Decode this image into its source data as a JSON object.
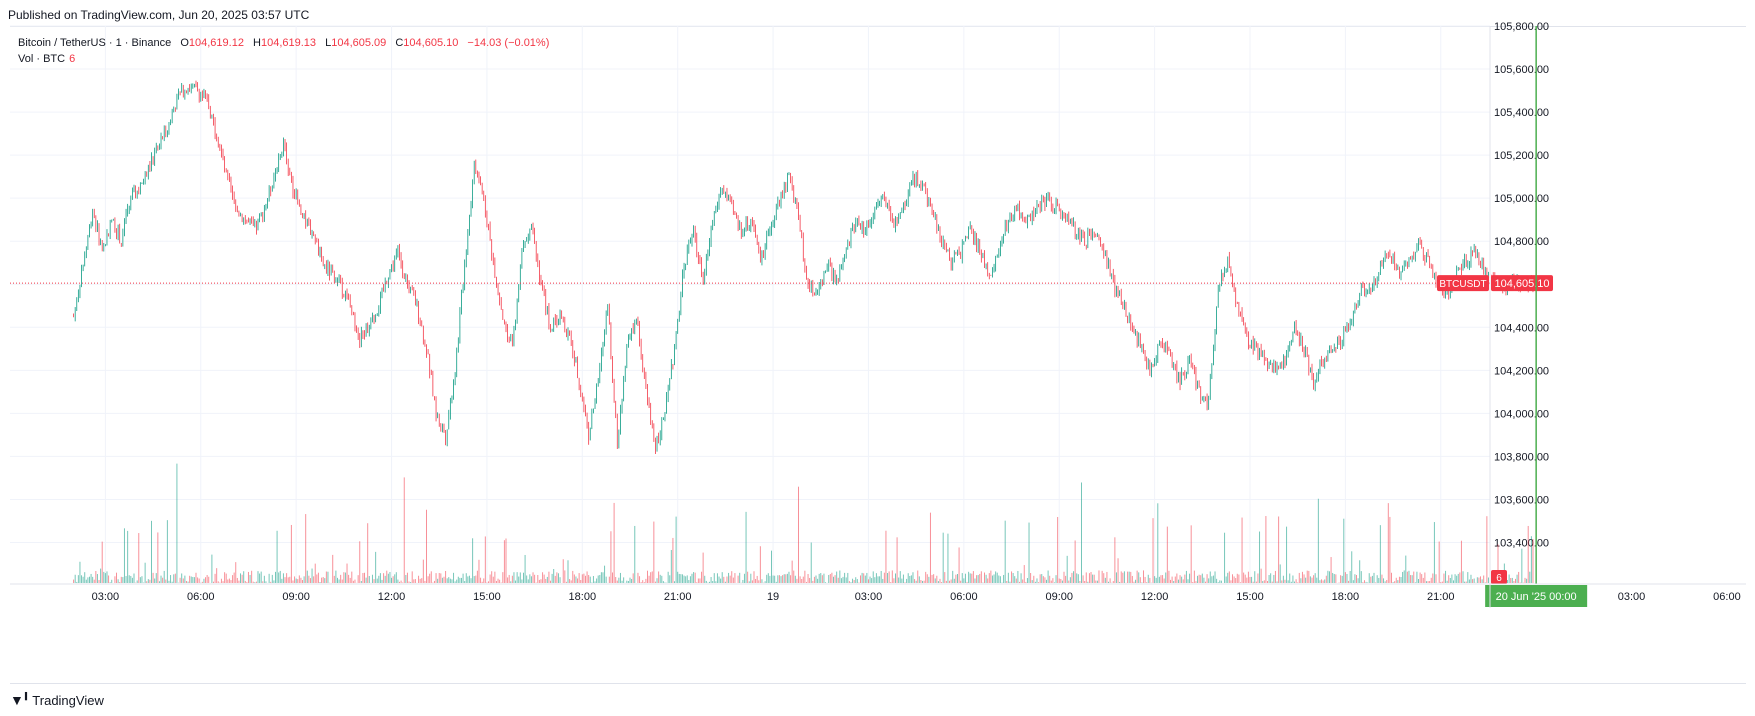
{
  "published": "Published on TradingView.com, Jun 20, 2025 03:57 UTC",
  "legend": {
    "symbol": "Bitcoin / TetherUS · 1 · Binance",
    "o_label": "O",
    "o": "104,619.12",
    "h_label": "H",
    "h": "104,619.13",
    "l_label": "L",
    "l": "104,605.09",
    "c_label": "C",
    "c": "104,605.10",
    "change": "−14.03 (−0.01%)",
    "vol_label": "Vol · BTC",
    "vol": "6"
  },
  "colors": {
    "up": "#089981",
    "down": "#f23645",
    "grid": "#f0f3fa",
    "marker": "#4caf50",
    "price_line": "#f23645"
  },
  "footer": {
    "brand": "TradingView",
    "logo": "tradingview-logo-icon"
  },
  "chart_data": {
    "type": "candlestick",
    "symbol_tag": "BTCUSDT",
    "last_price": 104605.1,
    "last_price_label": "104,605.10",
    "last_volume_label": "6",
    "y_range": [
      103300,
      105800
    ],
    "y_ticks": [
      103400,
      103600,
      103800,
      104000,
      104200,
      104400,
      104600,
      104800,
      105000,
      105200,
      105400,
      105600,
      105800
    ],
    "y_tick_labels": [
      "103,400.00",
      "103,600.00",
      "103,800.00",
      "104,000.00",
      "104,200.00",
      "104,400.00",
      "104,600.00",
      "104,800.00",
      "105,000.00",
      "105,200.00",
      "105,400.00",
      "105,600.00",
      "105,800.00"
    ],
    "x_range_hours": [
      0,
      33
    ],
    "x_ticks": [
      {
        "h": 2,
        "label": "03:00"
      },
      {
        "h": 5,
        "label": "06:00"
      },
      {
        "h": 8,
        "label": "09:00"
      },
      {
        "h": 11,
        "label": "12:00"
      },
      {
        "h": 14,
        "label": "15:00"
      },
      {
        "h": 17,
        "label": "18:00"
      },
      {
        "h": 20,
        "label": "21:00"
      },
      {
        "h": 23,
        "label": "19"
      },
      {
        "h": 26,
        "label": "03:00"
      },
      {
        "h": 29,
        "label": "06:00"
      },
      {
        "h": 32,
        "label": "09:00"
      },
      {
        "h": 35,
        "label": "12:00"
      },
      {
        "h": 38,
        "label": "15:00"
      },
      {
        "h": 41,
        "label": "18:00"
      },
      {
        "h": 44,
        "label": "21:00"
      },
      {
        "h": 47,
        "label": "00:00"
      },
      {
        "h": 50,
        "label": "03:00"
      },
      {
        "h": 53,
        "label": "06:00"
      }
    ],
    "crosshair": {
      "h": 47,
      "label": "20 Jun '25   00:00"
    },
    "price_path": [
      [
        1.0,
        104450
      ],
      [
        1.3,
        104700
      ],
      [
        1.6,
        104950
      ],
      [
        1.9,
        104750
      ],
      [
        2.2,
        104900
      ],
      [
        2.5,
        104800
      ],
      [
        2.8,
        105000
      ],
      [
        3.1,
        105050
      ],
      [
        3.4,
        105150
      ],
      [
        3.7,
        105250
      ],
      [
        4.0,
        105350
      ],
      [
        4.3,
        105480
      ],
      [
        4.6,
        105520
      ],
      [
        4.9,
        105500
      ],
      [
        5.2,
        105450
      ],
      [
        5.5,
        105300
      ],
      [
        5.8,
        105100
      ],
      [
        6.1,
        104950
      ],
      [
        6.4,
        104900
      ],
      [
        6.7,
        104850
      ],
      [
        7.0,
        104950
      ],
      [
        7.3,
        105100
      ],
      [
        7.6,
        105250
      ],
      [
        7.9,
        105050
      ],
      [
        8.2,
        104900
      ],
      [
        8.5,
        104850
      ],
      [
        8.8,
        104700
      ],
      [
        9.1,
        104650
      ],
      [
        9.4,
        104600
      ],
      [
        9.7,
        104500
      ],
      [
        10.0,
        104350
      ],
      [
        10.3,
        104400
      ],
      [
        10.6,
        104500
      ],
      [
        10.9,
        104650
      ],
      [
        11.2,
        104750
      ],
      [
        11.5,
        104600
      ],
      [
        11.8,
        104500
      ],
      [
        12.1,
        104300
      ],
      [
        12.4,
        104000
      ],
      [
        12.7,
        103900
      ],
      [
        13.0,
        104200
      ],
      [
        13.3,
        104700
      ],
      [
        13.6,
        105150
      ],
      [
        13.9,
        105000
      ],
      [
        14.2,
        104700
      ],
      [
        14.5,
        104450
      ],
      [
        14.8,
        104300
      ],
      [
        15.1,
        104750
      ],
      [
        15.4,
        104900
      ],
      [
        15.7,
        104600
      ],
      [
        16.0,
        104400
      ],
      [
        16.3,
        104450
      ],
      [
        16.6,
        104350
      ],
      [
        16.9,
        104150
      ],
      [
        17.2,
        103900
      ],
      [
        17.5,
        104150
      ],
      [
        17.8,
        104500
      ],
      [
        18.1,
        103850
      ],
      [
        18.4,
        104300
      ],
      [
        18.7,
        104450
      ],
      [
        19.0,
        104100
      ],
      [
        19.3,
        103850
      ],
      [
        19.6,
        104000
      ],
      [
        19.9,
        104300
      ],
      [
        20.2,
        104700
      ],
      [
        20.5,
        104850
      ],
      [
        20.8,
        104600
      ],
      [
        21.1,
        104900
      ],
      [
        21.4,
        105050
      ],
      [
        21.7,
        104950
      ],
      [
        22.0,
        104850
      ],
      [
        22.3,
        104900
      ],
      [
        22.6,
        104700
      ],
      [
        22.9,
        104850
      ],
      [
        23.2,
        105000
      ],
      [
        23.5,
        105100
      ],
      [
        23.8,
        104900
      ],
      [
        24.1,
        104600
      ],
      [
        24.4,
        104550
      ],
      [
        24.7,
        104700
      ],
      [
        25.0,
        104600
      ],
      [
        25.3,
        104750
      ],
      [
        25.6,
        104900
      ],
      [
        25.9,
        104850
      ],
      [
        26.2,
        104950
      ],
      [
        26.5,
        105000
      ],
      [
        26.8,
        104850
      ],
      [
        27.1,
        104950
      ],
      [
        27.4,
        105100
      ],
      [
        27.7,
        105050
      ],
      [
        28.0,
        104950
      ],
      [
        28.3,
        104800
      ],
      [
        28.6,
        104700
      ],
      [
        28.9,
        104750
      ],
      [
        29.2,
        104850
      ],
      [
        29.5,
        104750
      ],
      [
        29.8,
        104650
      ],
      [
        30.1,
        104750
      ],
      [
        30.4,
        104900
      ],
      [
        30.7,
        104950
      ],
      [
        31.0,
        104900
      ],
      [
        31.3,
        104950
      ],
      [
        31.6,
        105000
      ],
      [
        31.9,
        104950
      ],
      [
        32.2,
        104900
      ],
      [
        32.5,
        104850
      ],
      [
        32.8,
        104800
      ],
      [
        33.1,
        104850
      ],
      [
        33.4,
        104750
      ],
      [
        33.7,
        104600
      ],
      [
        34.0,
        104500
      ],
      [
        34.3,
        104400
      ],
      [
        34.6,
        104300
      ],
      [
        34.9,
        104200
      ],
      [
        35.2,
        104350
      ],
      [
        35.5,
        104250
      ],
      [
        35.8,
        104150
      ],
      [
        36.1,
        104250
      ],
      [
        36.4,
        104100
      ],
      [
        36.7,
        104050
      ],
      [
        37.0,
        104600
      ],
      [
        37.3,
        104700
      ],
      [
        37.6,
        104500
      ],
      [
        37.9,
        104350
      ],
      [
        38.2,
        104300
      ],
      [
        38.5,
        104250
      ],
      [
        38.8,
        104200
      ],
      [
        39.1,
        104250
      ],
      [
        39.4,
        104400
      ],
      [
        39.7,
        104300
      ],
      [
        40.0,
        104150
      ],
      [
        40.3,
        104250
      ],
      [
        40.6,
        104300
      ],
      [
        40.9,
        104350
      ],
      [
        41.2,
        104450
      ],
      [
        41.5,
        104600
      ],
      [
        41.8,
        104550
      ],
      [
        42.1,
        104700
      ],
      [
        42.4,
        104750
      ],
      [
        42.7,
        104650
      ],
      [
        43.0,
        104700
      ],
      [
        43.3,
        104800
      ],
      [
        43.6,
        104700
      ],
      [
        43.9,
        104600
      ],
      [
        44.2,
        104550
      ],
      [
        44.5,
        104650
      ],
      [
        44.8,
        104700
      ],
      [
        45.1,
        104750
      ],
      [
        45.4,
        104650
      ],
      [
        45.7,
        104600
      ],
      [
        46.0,
        104580
      ],
      [
        46.3,
        104620
      ],
      [
        46.6,
        104610
      ],
      [
        46.9,
        104605
      ]
    ]
  }
}
